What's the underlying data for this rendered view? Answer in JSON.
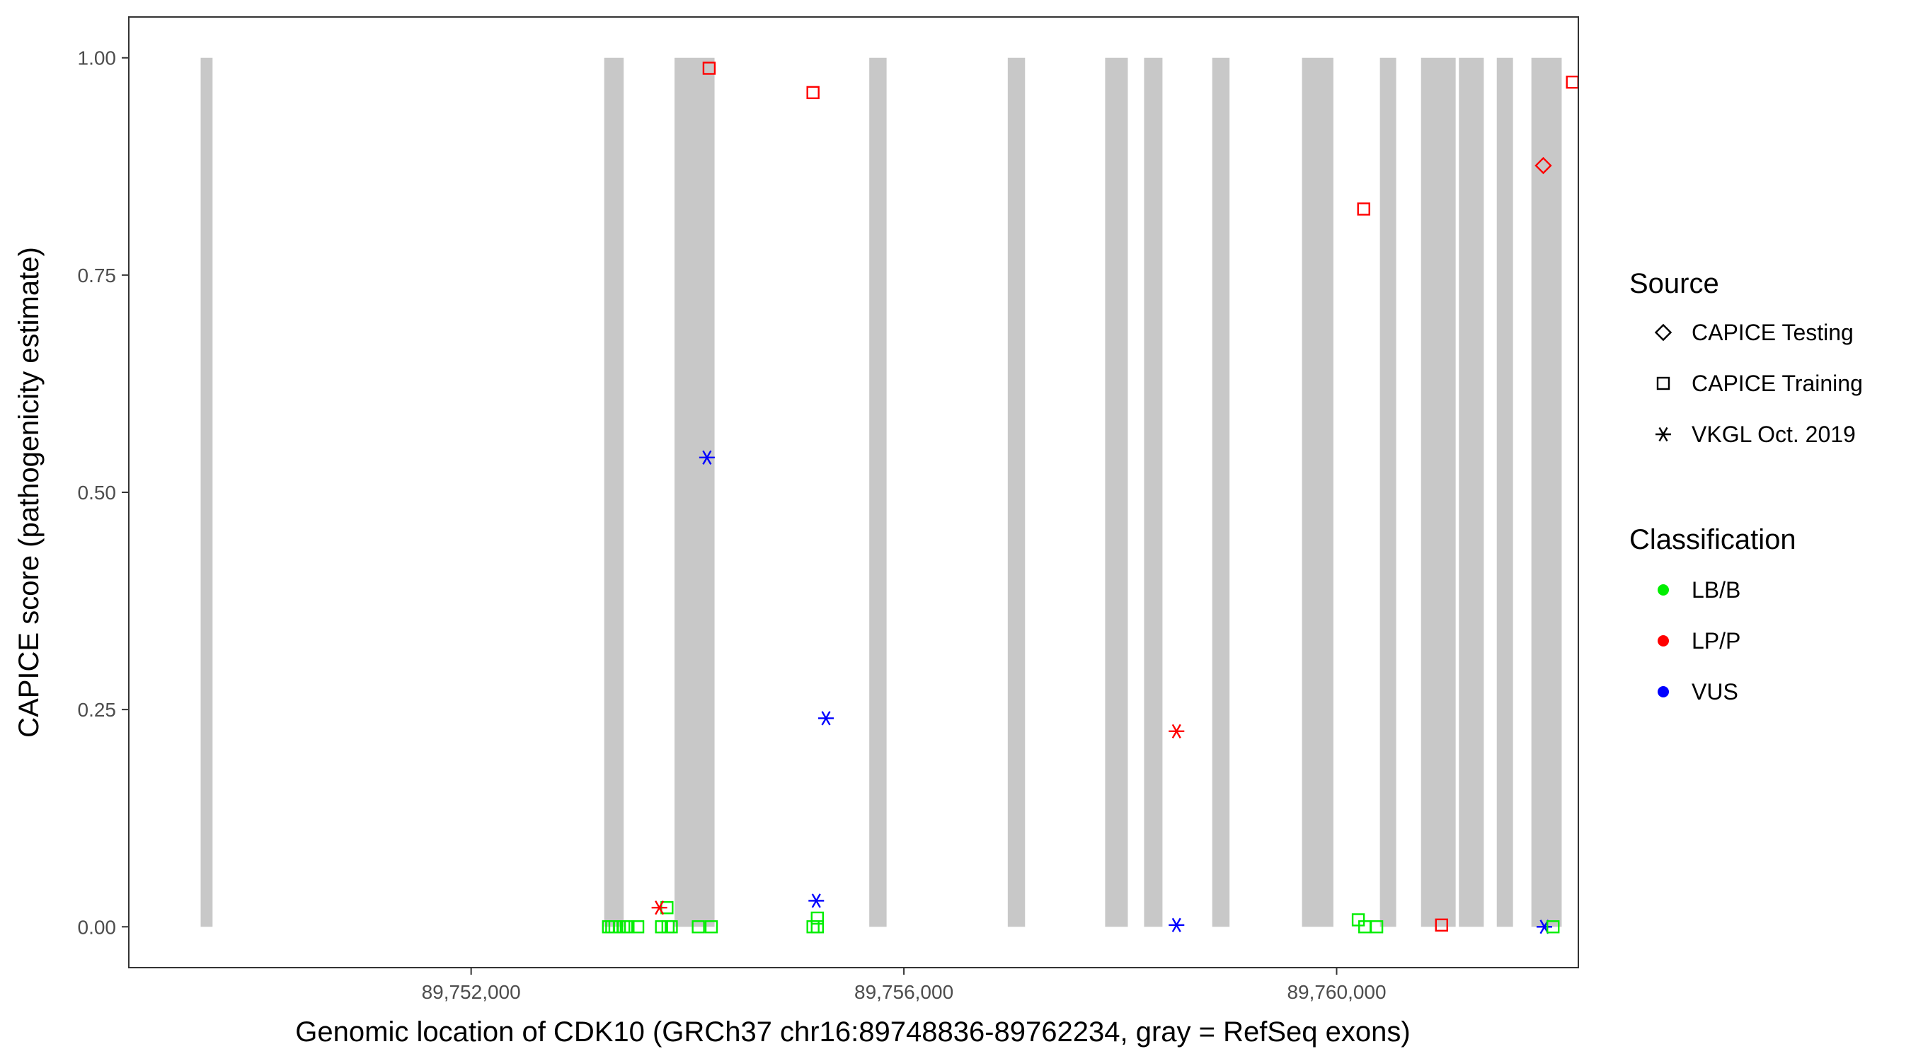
{
  "chart_data": {
    "type": "scatter",
    "title": "",
    "xlabel": "Genomic location of CDK10 (GRCh37 chr16:89748836-89762234, gray = RefSeq exons)",
    "ylabel": "CAPICE score (pathogenicity estimate)",
    "xlim": [
      89748836,
      89762234
    ],
    "ylim": [
      -0.047,
      1.047
    ],
    "x_ticks": [
      89752000,
      89756000,
      89760000
    ],
    "x_tick_labels": [
      "89,752,000",
      "89,756,000",
      "89,760,000"
    ],
    "y_ticks": [
      0,
      0.25,
      0.5,
      0.75,
      1
    ],
    "y_tick_labels": [
      "0.00",
      "0.25",
      "0.50",
      "0.75",
      "1.00"
    ],
    "grid": false,
    "exon_color": "#c8c8c8",
    "exons": [
      [
        89749500,
        89749610
      ],
      [
        89753230,
        89753410
      ],
      [
        89753880,
        89754250
      ],
      [
        89755680,
        89755840
      ],
      [
        89756960,
        89757120
      ],
      [
        89757860,
        89758070
      ],
      [
        89758220,
        89758390
      ],
      [
        89758850,
        89759010
      ],
      [
        89759680,
        89759970
      ],
      [
        89760400,
        89760550
      ],
      [
        89760780,
        89761100
      ],
      [
        89761130,
        89761360
      ],
      [
        89761480,
        89761630
      ],
      [
        89761800,
        89762080
      ]
    ],
    "legend": {
      "position": "right",
      "source": {
        "title": "Source",
        "entries": [
          {
            "label": "CAPICE Testing",
            "shape": "diamond"
          },
          {
            "label": "CAPICE Training",
            "shape": "square"
          },
          {
            "label": "VKGL Oct. 2019",
            "shape": "asterisk"
          }
        ]
      },
      "classification": {
        "title": "Classification",
        "entries": [
          {
            "label": "LB/B",
            "color": "#00ee00"
          },
          {
            "label": "LP/P",
            "color": "#ff0000"
          },
          {
            "label": "VUS",
            "color": "#0000ff"
          }
        ]
      }
    },
    "points": [
      {
        "x": 89753270,
        "y": 0.0,
        "source": "CAPICE Training",
        "class": "LB/B"
      },
      {
        "x": 89753300,
        "y": 0.0,
        "source": "CAPICE Training",
        "class": "LB/B"
      },
      {
        "x": 89753330,
        "y": 0.0,
        "source": "CAPICE Training",
        "class": "LB/B"
      },
      {
        "x": 89753370,
        "y": 0.0,
        "source": "CAPICE Training",
        "class": "LB/B"
      },
      {
        "x": 89753410,
        "y": 0.0,
        "source": "CAPICE Training",
        "class": "LB/B"
      },
      {
        "x": 89753450,
        "y": 0.0,
        "source": "CAPICE Training",
        "class": "LB/B"
      },
      {
        "x": 89753540,
        "y": 0.0,
        "source": "CAPICE Training",
        "class": "LB/B"
      },
      {
        "x": 89753760,
        "y": 0.0,
        "source": "CAPICE Training",
        "class": "LB/B"
      },
      {
        "x": 89753820,
        "y": 0.0,
        "source": "CAPICE Training",
        "class": "LB/B"
      },
      {
        "x": 89753850,
        "y": 0.0,
        "source": "CAPICE Training",
        "class": "LB/B"
      },
      {
        "x": 89753810,
        "y": 0.022,
        "source": "CAPICE Training",
        "class": "LB/B"
      },
      {
        "x": 89754100,
        "y": 0.0,
        "source": "CAPICE Training",
        "class": "LB/B"
      },
      {
        "x": 89754220,
        "y": 0.0,
        "source": "CAPICE Training",
        "class": "LB/B"
      },
      {
        "x": 89753740,
        "y": 0.022,
        "source": "VKGL Oct. 2019",
        "class": "LP/P"
      },
      {
        "x": 89754200,
        "y": 0.988,
        "source": "CAPICE Training",
        "class": "LP/P"
      },
      {
        "x": 89754180,
        "y": 0.54,
        "source": "VKGL Oct. 2019",
        "class": "VUS"
      },
      {
        "x": 89755160,
        "y": 0.96,
        "source": "CAPICE Training",
        "class": "LP/P"
      },
      {
        "x": 89755160,
        "y": 0.0,
        "source": "CAPICE Training",
        "class": "LB/B"
      },
      {
        "x": 89755200,
        "y": 0.0,
        "source": "CAPICE Training",
        "class": "LB/B"
      },
      {
        "x": 89755200,
        "y": 0.01,
        "source": "CAPICE Training",
        "class": "LB/B"
      },
      {
        "x": 89755190,
        "y": 0.03,
        "source": "VKGL Oct. 2019",
        "class": "VUS"
      },
      {
        "x": 89755280,
        "y": 0.24,
        "source": "VKGL Oct. 2019",
        "class": "VUS"
      },
      {
        "x": 89758520,
        "y": 0.225,
        "source": "VKGL Oct. 2019",
        "class": "LP/P"
      },
      {
        "x": 89758520,
        "y": 0.002,
        "source": "VKGL Oct. 2019",
        "class": "VUS"
      },
      {
        "x": 89760200,
        "y": 0.008,
        "source": "CAPICE Training",
        "class": "LB/B"
      },
      {
        "x": 89760260,
        "y": 0.0,
        "source": "CAPICE Training",
        "class": "LB/B"
      },
      {
        "x": 89760370,
        "y": 0.0,
        "source": "CAPICE Training",
        "class": "LB/B"
      },
      {
        "x": 89760250,
        "y": 0.826,
        "source": "CAPICE Training",
        "class": "LP/P"
      },
      {
        "x": 89760970,
        "y": 0.002,
        "source": "CAPICE Training",
        "class": "LP/P"
      },
      {
        "x": 89761910,
        "y": 0.876,
        "source": "CAPICE Testing",
        "class": "LP/P"
      },
      {
        "x": 89761920,
        "y": 0.0,
        "source": "VKGL Oct. 2019",
        "class": "VUS"
      },
      {
        "x": 89762000,
        "y": 0.0,
        "source": "CAPICE Training",
        "class": "LB/B"
      },
      {
        "x": 89762180,
        "y": 0.972,
        "source": "CAPICE Training",
        "class": "LP/P"
      }
    ]
  }
}
